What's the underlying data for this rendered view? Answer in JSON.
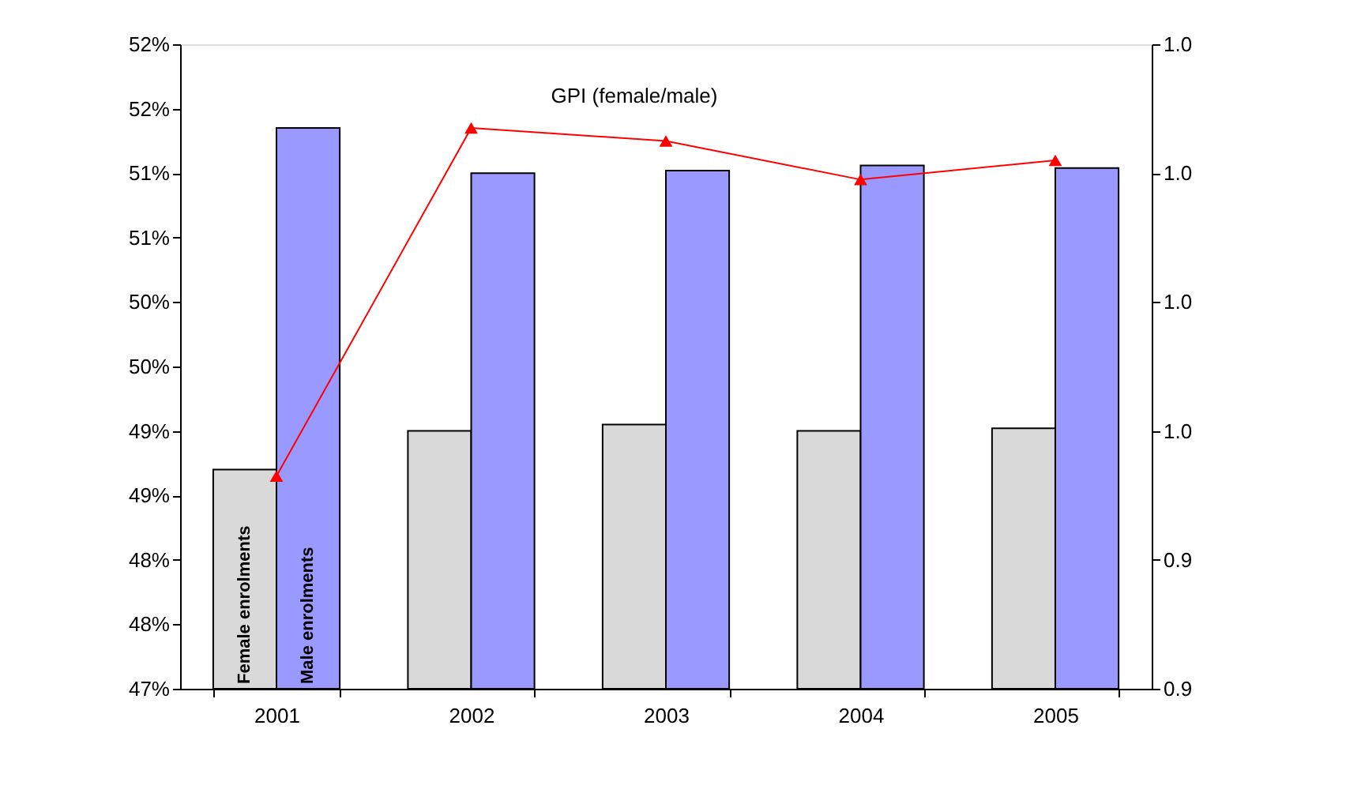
{
  "chart_data": {
    "type": "bar",
    "categories": [
      "2001",
      "2002",
      "2003",
      "2004",
      "2005"
    ],
    "series": [
      {
        "name": "Female enrolments",
        "color": "#d9d9d9",
        "values": [
          48.7,
          49.0,
          49.05,
          49.0,
          49.02
        ]
      },
      {
        "name": "Male enrolments",
        "color": "#9999ff",
        "values": [
          51.35,
          51.0,
          51.02,
          51.06,
          51.04
        ]
      },
      {
        "name": "GPI (female/male)",
        "type": "line",
        "axis": "y2",
        "color": "#ff0000",
        "marker": "triangle",
        "values": [
          0.953,
          1.007,
          1.005,
          0.999,
          1.002
        ]
      }
    ],
    "ylim": [
      47,
      52
    ],
    "yticks": [
      {
        "value": 47,
        "label": "47%"
      },
      {
        "value": 47.5,
        "label": "48%"
      },
      {
        "value": 48,
        "label": "48%"
      },
      {
        "value": 48.5,
        "label": "49%"
      },
      {
        "value": 49,
        "label": "49%"
      },
      {
        "value": 49.5,
        "label": "50%"
      },
      {
        "value": 50,
        "label": "50%"
      },
      {
        "value": 50.5,
        "label": "51%"
      },
      {
        "value": 51,
        "label": "51%"
      },
      {
        "value": 51.5,
        "label": "52%"
      },
      {
        "value": 52,
        "label": "52%"
      }
    ],
    "y2lim": [
      0.92,
      1.02
    ],
    "y2ticks": [
      {
        "value": 0.92,
        "label": "0.9"
      },
      {
        "value": 0.94,
        "label": "0.9"
      },
      {
        "value": 0.96,
        "label": "1.0"
      },
      {
        "value": 0.98,
        "label": "1.0"
      },
      {
        "value": 1.0,
        "label": "1.0"
      },
      {
        "value": 1.02,
        "label": "1.0"
      }
    ],
    "grid": false
  }
}
